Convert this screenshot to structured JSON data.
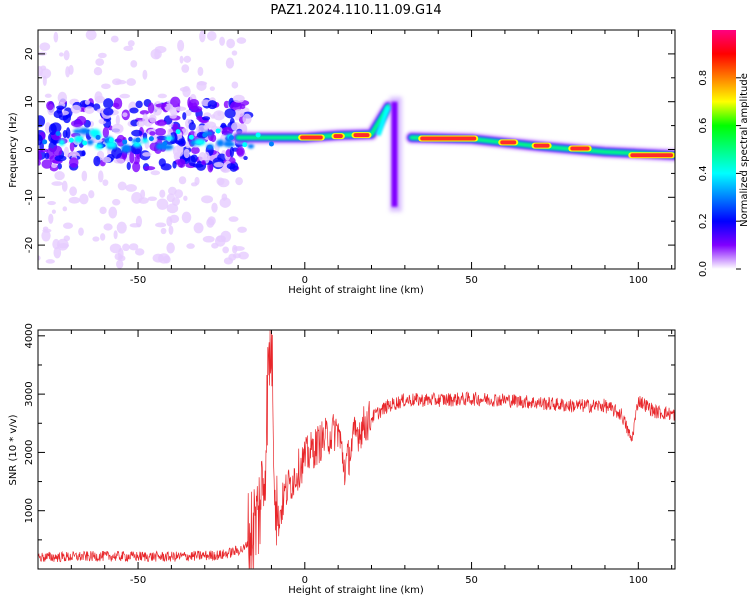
{
  "title": "PAZ1.2024.110.11.09.G14",
  "chart_data": [
    {
      "type": "heatmap",
      "xlabel": "Height of straight line (km)",
      "ylabel": "Frequency (Hz)",
      "xlim": [
        -80,
        111
      ],
      "ylim": [
        -25,
        25
      ],
      "x_ticks": [
        -50,
        0,
        50,
        100
      ],
      "y_ticks": [
        -20,
        -10,
        0,
        10,
        20
      ],
      "colorbar": {
        "label": "Normalized spectral amplitude",
        "range": [
          0,
          1
        ],
        "ticks": [
          "0.0",
          "0.2",
          "0.4",
          "0.6",
          "0.8"
        ],
        "colormap": "gist_rainbow reversed (violet to red)",
        "colors": [
          "#ffffff",
          "#8000ff",
          "#0000ff",
          "#00bfff",
          "#00ff80",
          "#00ff00",
          "#ffff00",
          "#ff8000",
          "#ff0000",
          "#ff0080"
        ]
      },
      "ridge": [
        {
          "x": -80,
          "y": 3.5
        },
        {
          "x": -65,
          "y": 3
        },
        {
          "x": -50,
          "y": 3
        },
        {
          "x": -35,
          "y": 3
        },
        {
          "x": -20,
          "y": 2.5
        },
        {
          "x": -8,
          "y": 2.5
        },
        {
          "x": 0,
          "y": 2.5
        },
        {
          "x": 10,
          "y": 3
        },
        {
          "x": 20,
          "y": 3.2
        },
        {
          "x": 25,
          "y": 9
        },
        {
          "x": 27,
          "y": -10
        },
        {
          "x": 30,
          "y": 0
        },
        {
          "x": 32,
          "y": 2.5
        },
        {
          "x": 50,
          "y": 2.2
        },
        {
          "x": 70,
          "y": 0.7
        },
        {
          "x": 90,
          "y": -0.5
        },
        {
          "x": 111,
          "y": -1.2
        }
      ],
      "grid": false
    },
    {
      "type": "line",
      "xlabel": "Height of straight line (km)",
      "ylabel": "SNR (10 * v/v)",
      "xlim": [
        -80,
        111
      ],
      "ylim": [
        0,
        4100
      ],
      "x_ticks": [
        -50,
        0,
        50,
        100
      ],
      "y_ticks": [
        1000,
        2000,
        3000,
        4000
      ],
      "color": "#e8262a",
      "series": [
        {
          "x": [
            -80,
            -60,
            -40,
            -25,
            -18,
            -14,
            -12,
            -11,
            -10,
            -9,
            -8,
            -6,
            -4,
            0,
            5,
            10,
            12,
            15,
            20,
            25,
            30,
            40,
            50,
            60,
            70,
            80,
            90,
            95,
            98,
            100,
            105,
            111
          ],
          "values": [
            200,
            220,
            210,
            240,
            350,
            900,
            1700,
            3300,
            4100,
            1600,
            800,
            1300,
            1500,
            1900,
            2200,
            2400,
            1700,
            2300,
            2600,
            2800,
            2900,
            2900,
            2920,
            2900,
            2850,
            2800,
            2800,
            2650,
            2200,
            2900,
            2700,
            2650
          ]
        }
      ],
      "grid": false
    }
  ]
}
